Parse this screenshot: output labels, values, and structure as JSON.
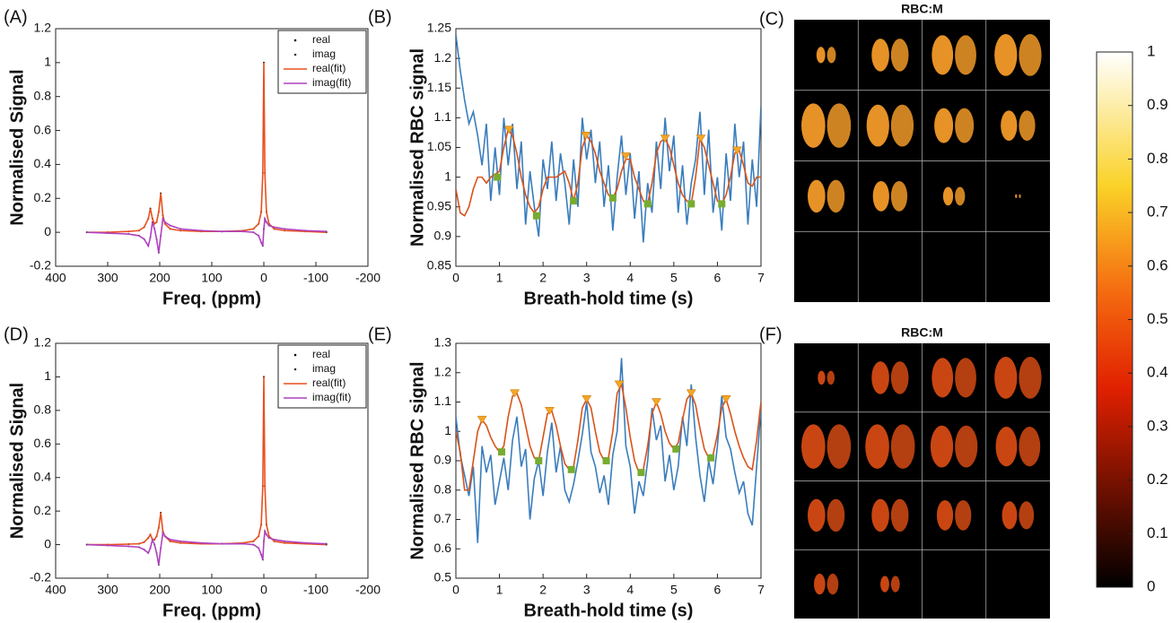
{
  "chart_data": [
    {
      "type": "spectrum",
      "label": "(A)",
      "ylabel": "Normalised Signal",
      "xlabel": "Freq. (ppm)",
      "xlim": [
        400,
        -200
      ],
      "xticks": [
        400,
        300,
        200,
        100,
        0,
        -100,
        -200
      ],
      "ylim": [
        -0.2,
        1.2
      ],
      "yticks": [
        -0.2,
        0,
        0.2,
        0.4,
        0.6,
        0.8,
        1,
        1.2
      ],
      "legend": "upper right",
      "x": [
        340,
        300,
        260,
        240,
        230,
        222,
        218,
        214,
        210,
        206,
        202,
        198,
        194,
        190,
        180,
        160,
        120,
        80,
        40,
        20,
        10,
        5,
        2,
        0,
        -2,
        -5,
        -10,
        -20,
        -40,
        -80,
        -120
      ],
      "series": [
        {
          "name": "real",
          "color": "#000000",
          "style": "dot",
          "values": [
            0,
            0,
            0.005,
            0.01,
            0.03,
            0.08,
            0.14,
            0.08,
            0.05,
            0.06,
            0.12,
            0.23,
            0.1,
            0.05,
            0.02,
            0.01,
            0.005,
            0.005,
            0.01,
            0.02,
            0.05,
            0.12,
            0.35,
            1.0,
            0.35,
            0.12,
            0.05,
            0.02,
            0.01,
            0.005,
            0
          ]
        },
        {
          "name": "imag",
          "color": "#333333",
          "style": "dot",
          "values": [
            0,
            -0.005,
            -0.01,
            -0.02,
            -0.04,
            -0.08,
            -0.03,
            0.06,
            0.02,
            -0.04,
            -0.12,
            -0.02,
            0.08,
            0.06,
            0.04,
            0.02,
            0.01,
            0.005,
            0.005,
            0,
            -0.02,
            -0.06,
            -0.08,
            0.02,
            0.08,
            0.06,
            0.04,
            0.03,
            0.02,
            0.01,
            0.005
          ]
        },
        {
          "name": "real(fit)",
          "color": "#e8501e",
          "style": "line",
          "values": [
            0,
            0,
            0.005,
            0.01,
            0.03,
            0.08,
            0.14,
            0.08,
            0.05,
            0.06,
            0.12,
            0.23,
            0.1,
            0.05,
            0.02,
            0.01,
            0.005,
            0.005,
            0.01,
            0.02,
            0.05,
            0.12,
            0.35,
            1.0,
            0.35,
            0.12,
            0.05,
            0.02,
            0.01,
            0.005,
            0
          ]
        },
        {
          "name": "imag(fit)",
          "color": "#b040c0",
          "style": "line",
          "values": [
            0,
            -0.005,
            -0.01,
            -0.02,
            -0.04,
            -0.08,
            -0.03,
            0.06,
            0.02,
            -0.04,
            -0.12,
            -0.02,
            0.08,
            0.06,
            0.04,
            0.02,
            0.01,
            0.005,
            0.005,
            0,
            -0.02,
            -0.06,
            -0.08,
            0.02,
            0.08,
            0.06,
            0.04,
            0.03,
            0.02,
            0.01,
            0.005
          ]
        }
      ]
    },
    {
      "type": "signal",
      "label": "(B)",
      "ylabel": "Normalised RBC signal",
      "xlabel": "Breath-hold time (s)",
      "xlim": [
        0,
        7
      ],
      "xticks": [
        0,
        1,
        2,
        3,
        4,
        5,
        6,
        7
      ],
      "ylim": [
        0.85,
        1.25
      ],
      "yticks": [
        0.85,
        0.9,
        0.95,
        1,
        1.05,
        1.1,
        1.15,
        1.2,
        1.25
      ],
      "x": [
        0,
        0.1,
        0.2,
        0.3,
        0.4,
        0.5,
        0.6,
        0.7,
        0.8,
        0.9,
        1,
        1.1,
        1.2,
        1.3,
        1.4,
        1.5,
        1.6,
        1.7,
        1.8,
        1.9,
        2,
        2.1,
        2.2,
        2.3,
        2.4,
        2.5,
        2.6,
        2.7,
        2.8,
        2.9,
        3,
        3.1,
        3.2,
        3.3,
        3.4,
        3.5,
        3.6,
        3.7,
        3.8,
        3.9,
        4,
        4.1,
        4.2,
        4.3,
        4.4,
        4.5,
        4.6,
        4.7,
        4.8,
        4.9,
        5,
        5.1,
        5.2,
        5.3,
        5.4,
        5.5,
        5.6,
        5.7,
        5.8,
        5.9,
        6,
        6.1,
        6.2,
        6.3,
        6.4,
        6.5,
        6.6,
        6.7,
        6.8,
        6.9,
        7
      ],
      "series": [
        {
          "color": "#3a7dbd",
          "style": "line",
          "values": [
            1.24,
            1.18,
            1.13,
            1.09,
            1.11,
            1.07,
            1.02,
            1.09,
            0.96,
            1.05,
            0.97,
            1.1,
            1.02,
            1.09,
            0.98,
            1.06,
            0.92,
            1.01,
            0.95,
            0.9,
            1.03,
            0.98,
            1.06,
            0.96,
            1.04,
            0.99,
            0.92,
            1.03,
            0.95,
            1.1,
            1.03,
            1.08,
            0.99,
            1.06,
            0.95,
            1.02,
            0.91,
            1.0,
            1.07,
            0.97,
            1.04,
            0.93,
            1.01,
            0.89,
            0.99,
            0.94,
            1.06,
            0.98,
            1.1,
            1.01,
            1.07,
            0.94,
            1.02,
            0.92,
            0.99,
            1.03,
            1.11,
            0.97,
            1.08,
            0.94,
            1.0,
            0.91,
            1.04,
            0.96,
            1.09,
            1.0,
            1.06,
            0.92,
            1.03,
            0.95,
            1.12
          ]
        },
        {
          "color": "#d95319",
          "style": "line",
          "values": [
            0.98,
            0.94,
            0.935,
            0.95,
            0.98,
            1.0,
            1.0,
            0.99,
            1.0,
            1.005,
            1.01,
            1.05,
            1.08,
            1.07,
            1.04,
            1.0,
            0.97,
            0.95,
            0.94,
            0.95,
            0.98,
            1.0,
            1.0,
            1.0,
            1.005,
            1.01,
            0.99,
            0.96,
            0.99,
            1.05,
            1.07,
            1.06,
            1.04,
            1.01,
            0.99,
            0.97,
            0.965,
            0.98,
            1.01,
            1.03,
            1.03,
            1.0,
            0.98,
            0.96,
            0.955,
            0.99,
            1.04,
            1.06,
            1.065,
            1.05,
            1.02,
            0.99,
            0.97,
            0.96,
            0.955,
            1.0,
            1.065,
            1.05,
            1.02,
            0.99,
            0.96,
            0.955,
            0.97,
            1.0,
            1.04,
            1.045,
            1.02,
            0.99,
            0.985,
            1.0,
            1.0
          ]
        },
        {
          "color": "#f5a623",
          "style": "triangle",
          "x": [
            1.22,
            2.98,
            3.9,
            4.8,
            5.62,
            6.45
          ],
          "values": [
            1.08,
            1.07,
            1.035,
            1.065,
            1.065,
            1.045
          ]
        },
        {
          "color": "#77ac30",
          "style": "square",
          "x": [
            0.95,
            1.85,
            2.7,
            3.6,
            4.4,
            5.4,
            6.1
          ],
          "values": [
            1.0,
            0.935,
            0.96,
            0.965,
            0.955,
            0.955,
            0.955
          ]
        }
      ]
    },
    {
      "type": "image",
      "label": "(C)",
      "title": "RBC:M",
      "color": "#f29a28"
    },
    {
      "type": "spectrum",
      "label": "(D)",
      "ylabel": "Normalised Signal",
      "xlabel": "Freq. (ppm)",
      "xlim": [
        400,
        -200
      ],
      "xticks": [
        400,
        300,
        200,
        100,
        0,
        -100,
        -200
      ],
      "ylim": [
        -0.2,
        1.2
      ],
      "yticks": [
        -0.2,
        0,
        0.2,
        0.4,
        0.6,
        0.8,
        1,
        1.2
      ],
      "legend": "upper right",
      "x": [
        340,
        300,
        260,
        240,
        230,
        222,
        218,
        214,
        210,
        206,
        202,
        198,
        194,
        190,
        180,
        160,
        120,
        80,
        40,
        20,
        10,
        5,
        2,
        0,
        -2,
        -5,
        -10,
        -20,
        -40,
        -80,
        -120
      ],
      "series": [
        {
          "name": "real",
          "color": "#000000",
          "style": "dot",
          "values": [
            0,
            0,
            0.003,
            0.005,
            0.015,
            0.04,
            0.06,
            0.03,
            0.03,
            0.05,
            0.1,
            0.19,
            0.08,
            0.05,
            0.02,
            0.01,
            0.005,
            0.005,
            0.01,
            0.02,
            0.05,
            0.12,
            0.35,
            1.0,
            0.35,
            0.12,
            0.05,
            0.02,
            0.01,
            0.005,
            0
          ]
        },
        {
          "name": "imag",
          "color": "#333333",
          "style": "dot",
          "values": [
            0,
            -0.005,
            -0.01,
            -0.015,
            -0.03,
            -0.05,
            -0.02,
            0.03,
            0,
            -0.05,
            -0.12,
            -0.02,
            0.07,
            0.05,
            0.03,
            0.02,
            0.01,
            0.005,
            0.005,
            0,
            -0.02,
            -0.06,
            -0.09,
            0.02,
            0.08,
            0.06,
            0.04,
            0.03,
            0.02,
            0.01,
            0.005
          ]
        },
        {
          "name": "real(fit)",
          "color": "#e8501e",
          "style": "line",
          "values": [
            0,
            0,
            0.003,
            0.005,
            0.015,
            0.04,
            0.06,
            0.03,
            0.03,
            0.05,
            0.1,
            0.19,
            0.08,
            0.05,
            0.02,
            0.01,
            0.005,
            0.005,
            0.01,
            0.02,
            0.05,
            0.12,
            0.35,
            1.0,
            0.35,
            0.12,
            0.05,
            0.02,
            0.01,
            0.005,
            0
          ]
        },
        {
          "name": "imag(fit)",
          "color": "#b040c0",
          "style": "line",
          "values": [
            0,
            -0.005,
            -0.01,
            -0.015,
            -0.03,
            -0.05,
            -0.02,
            0.03,
            0,
            -0.05,
            -0.12,
            -0.02,
            0.07,
            0.05,
            0.03,
            0.02,
            0.01,
            0.005,
            0.005,
            0,
            -0.02,
            -0.06,
            -0.09,
            0.02,
            0.08,
            0.06,
            0.04,
            0.03,
            0.02,
            0.01,
            0.005
          ]
        }
      ]
    },
    {
      "type": "signal",
      "label": "(E)",
      "ylabel": "Normalised RBC signal",
      "xlabel": "Breath-hold time (s)",
      "xlim": [
        0,
        7
      ],
      "xticks": [
        0,
        1,
        2,
        3,
        4,
        5,
        6,
        7
      ],
      "ylim": [
        0.5,
        1.3
      ],
      "yticks": [
        0.5,
        0.6,
        0.7,
        0.8,
        0.9,
        1,
        1.1,
        1.2,
        1.3
      ],
      "x": [
        0,
        0.1,
        0.2,
        0.3,
        0.4,
        0.5,
        0.6,
        0.7,
        0.8,
        0.9,
        1,
        1.1,
        1.2,
        1.3,
        1.4,
        1.5,
        1.6,
        1.7,
        1.8,
        1.9,
        2,
        2.1,
        2.2,
        2.3,
        2.4,
        2.5,
        2.6,
        2.7,
        2.8,
        2.9,
        3,
        3.1,
        3.2,
        3.3,
        3.4,
        3.5,
        3.6,
        3.7,
        3.8,
        3.9,
        4,
        4.1,
        4.2,
        4.3,
        4.4,
        4.5,
        4.6,
        4.7,
        4.8,
        4.9,
        5,
        5.1,
        5.2,
        5.3,
        5.4,
        5.5,
        5.6,
        5.7,
        5.8,
        5.9,
        6,
        6.1,
        6.2,
        6.3,
        6.4,
        6.5,
        6.6,
        6.7,
        6.8,
        6.9,
        7
      ],
      "series": [
        {
          "color": "#3a7dbd",
          "style": "line",
          "values": [
            1.05,
            0.92,
            0.85,
            0.78,
            0.88,
            0.62,
            0.95,
            0.86,
            0.92,
            0.75,
            0.83,
            0.91,
            0.8,
            0.97,
            1.05,
            0.88,
            0.94,
            0.7,
            0.84,
            0.9,
            0.78,
            0.93,
            1.03,
            0.86,
            0.95,
            0.8,
            0.76,
            0.82,
            0.9,
            0.99,
            1.1,
            0.93,
            0.88,
            0.79,
            0.85,
            0.75,
            0.92,
            1.0,
            1.25,
            0.95,
            0.88,
            0.72,
            0.83,
            0.78,
            0.9,
            1.08,
            0.97,
            1.02,
            0.83,
            0.92,
            0.8,
            0.88,
            1.05,
            0.95,
            1.16,
            0.98,
            0.85,
            0.76,
            0.9,
            0.82,
            0.95,
            1.12,
            0.98,
            0.94,
            0.86,
            0.79,
            0.83,
            0.72,
            0.68,
            0.88,
            1.08
          ]
        },
        {
          "color": "#d95319",
          "style": "line",
          "values": [
            1.0,
            0.93,
            0.8,
            0.8,
            0.9,
            1.0,
            1.04,
            1.02,
            0.98,
            0.95,
            0.93,
            0.95,
            1.05,
            1.12,
            1.13,
            1.09,
            1.02,
            0.95,
            0.91,
            0.9,
            0.98,
            1.06,
            1.07,
            1.02,
            0.95,
            0.89,
            0.87,
            0.88,
            0.97,
            1.08,
            1.11,
            1.08,
            1.0,
            0.93,
            0.9,
            0.91,
            1.0,
            1.13,
            1.16,
            1.08,
            0.98,
            0.9,
            0.86,
            0.87,
            0.95,
            1.06,
            1.1,
            1.06,
            1.0,
            0.96,
            0.94,
            0.96,
            1.04,
            1.11,
            1.13,
            1.09,
            1.01,
            0.94,
            0.91,
            0.92,
            0.99,
            1.08,
            1.11,
            1.06,
            1.0,
            0.95,
            0.91,
            0.88,
            0.87,
            0.97,
            1.1
          ]
        },
        {
          "color": "#f5a623",
          "style": "triangle",
          "x": [
            0.6,
            1.35,
            2.15,
            3.0,
            3.75,
            4.6,
            5.4,
            6.2
          ],
          "values": [
            1.04,
            1.13,
            1.07,
            1.11,
            1.16,
            1.1,
            1.13,
            1.11
          ]
        },
        {
          "color": "#77ac30",
          "style": "square",
          "x": [
            1.05,
            1.9,
            2.65,
            3.45,
            4.25,
            5.05,
            5.85
          ],
          "values": [
            0.93,
            0.9,
            0.87,
            0.9,
            0.86,
            0.94,
            0.91
          ]
        }
      ]
    },
    {
      "type": "image",
      "label": "(F)",
      "title": "RBC:M",
      "color": "#d44a14"
    },
    {
      "type": "colorbar",
      "ylim": [
        0,
        1
      ],
      "yticks": [
        0,
        0.1,
        0.2,
        0.3,
        0.4,
        0.5,
        0.6,
        0.7,
        0.8,
        0.9,
        1
      ]
    }
  ]
}
